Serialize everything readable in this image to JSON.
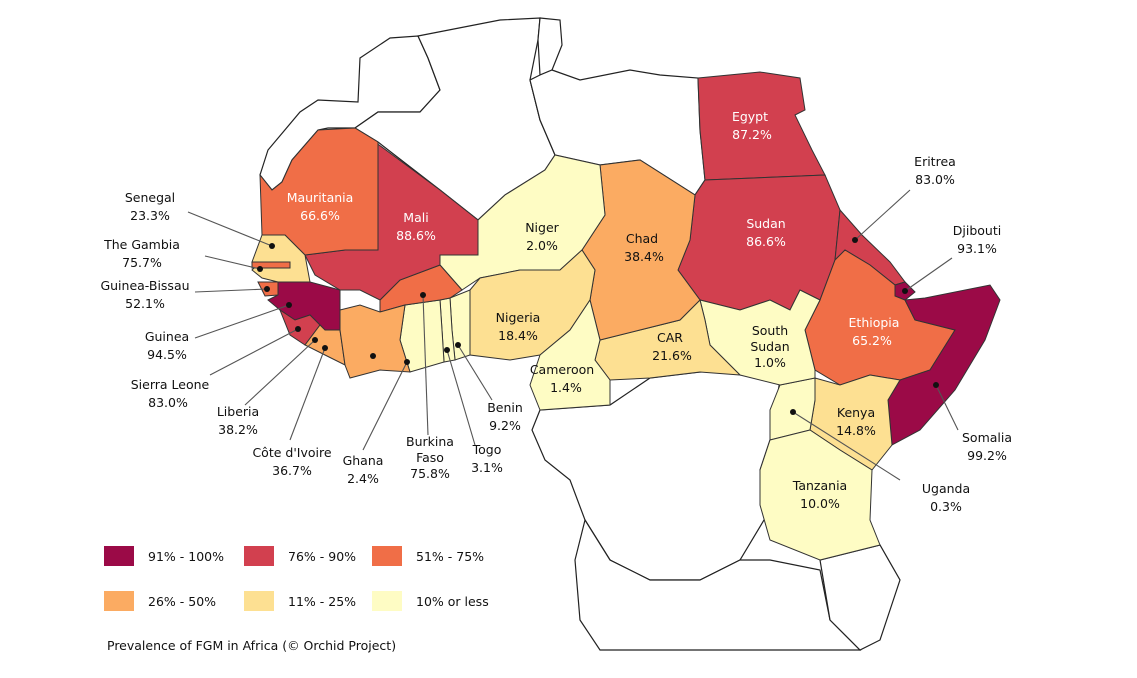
{
  "countries": {
    "egypt": {
      "name": "Egypt",
      "value": "87.2%"
    },
    "sudan": {
      "name": "Sudan",
      "value": "86.6%"
    },
    "mali": {
      "name": "Mali",
      "value": "88.6%"
    },
    "mauritania": {
      "name": "Mauritania",
      "value": "66.6%"
    },
    "niger": {
      "name": "Niger",
      "value": "2.0%"
    },
    "chad": {
      "name": "Chad",
      "value": "38.4%"
    },
    "nigeria": {
      "name": "Nigeria",
      "value": "18.4%"
    },
    "car": {
      "name": "CAR",
      "value": "21.6%"
    },
    "cameroon": {
      "name": "Cameroon",
      "value": "1.4%"
    },
    "south_sudan": {
      "name_1": "South",
      "name_2": "Sudan",
      "value": "1.0%"
    },
    "ethiopia": {
      "name": "Ethiopia",
      "value": "65.2%"
    },
    "kenya": {
      "name": "Kenya",
      "value": "14.8%"
    },
    "tanzania": {
      "name": "Tanzania",
      "value": "10.0%"
    },
    "eritrea": {
      "name": "Eritrea",
      "value": "83.0%"
    },
    "djibouti": {
      "name": "Djibouti",
      "value": "93.1%"
    },
    "somalia": {
      "name": "Somalia",
      "value": "99.2%"
    },
    "uganda": {
      "name": "Uganda",
      "value": "0.3%"
    },
    "senegal": {
      "name": "Senegal",
      "value": "23.3%"
    },
    "gambia": {
      "name": "The Gambia",
      "value": "75.7%"
    },
    "guinea_bissau": {
      "name": "Guinea-Bissau",
      "value": "52.1%"
    },
    "guinea": {
      "name": "Guinea",
      "value": "94.5%"
    },
    "sierra_leone": {
      "name": "Sierra Leone",
      "value": "83.0%"
    },
    "liberia": {
      "name": "Liberia",
      "value": "38.2%"
    },
    "cote_divoire": {
      "name": "Côte d'Ivoire",
      "value": "36.7%"
    },
    "ghana": {
      "name": "Ghana",
      "value": "2.4%"
    },
    "burkina_faso": {
      "name_1": "Burkina",
      "name_2": "Faso",
      "value": "75.8%"
    },
    "togo": {
      "name": "Togo",
      "value": "3.1%"
    },
    "benin": {
      "name": "Benin",
      "value": "9.2%"
    }
  },
  "legend": [
    {
      "label": "91% - 100%",
      "color": "#9b0a47"
    },
    {
      "label": "76% - 90%",
      "color": "#d2404f"
    },
    {
      "label": "51% - 75%",
      "color": "#f06e47"
    },
    {
      "label": "26% - 50%",
      "color": "#fbab62"
    },
    {
      "label": "11% - 25%",
      "color": "#fde092"
    },
    {
      "label": "10% or less",
      "color": "#fefcc4"
    }
  ],
  "colors": {
    "c91_100": "#9b0a47",
    "c76_90": "#d2404f",
    "c51_75": "#f06e47",
    "c26_50": "#fbab62",
    "c11_25": "#fde092",
    "c10_less": "#fefcc4",
    "border": "#222222"
  },
  "caption": "Prevalence of FGM in Africa (© Orchid Project)"
}
